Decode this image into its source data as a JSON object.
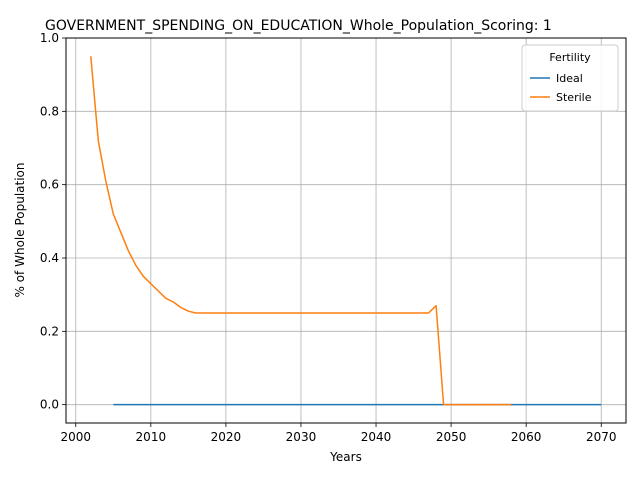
{
  "chart_data": {
    "type": "line",
    "title": "GOVERNMENT_SPENDING_ON_EDUCATION_Whole_Population_Scoring: 1",
    "xlabel": "Years",
    "ylabel": "% of Whole Population",
    "xlim": [
      1998.7,
      2073.3
    ],
    "ylim": [
      -0.05,
      1.0
    ],
    "xticks": [
      2000,
      2010,
      2020,
      2030,
      2040,
      2050,
      2060,
      2070
    ],
    "yticks": [
      0.0,
      0.2,
      0.4,
      0.6,
      0.8,
      1.0
    ],
    "xtick_labels": [
      "2000",
      "2010",
      "2020",
      "2030",
      "2040",
      "2050",
      "2060",
      "2070"
    ],
    "ytick_labels": [
      "0.0",
      "0.2",
      "0.4",
      "0.6",
      "0.8",
      "1.0"
    ],
    "grid": true,
    "legend": {
      "title": "Fertility",
      "placement": "top-right"
    },
    "series": [
      {
        "name": "Ideal",
        "color": "#1f77b4",
        "x": [
          2005,
          2070
        ],
        "y": [
          0.0,
          0.0
        ]
      },
      {
        "name": "Sterile",
        "color": "#ff7f0e",
        "x": [
          2002,
          2003,
          2004,
          2005,
          2006,
          2007,
          2008,
          2009,
          2010,
          2011,
          2012,
          2013,
          2014,
          2015,
          2016,
          2017,
          2020,
          2030,
          2040,
          2047,
          2048,
          2049,
          2050,
          2055,
          2058
        ],
        "y": [
          0.95,
          0.72,
          0.61,
          0.52,
          0.47,
          0.42,
          0.38,
          0.35,
          0.33,
          0.31,
          0.29,
          0.28,
          0.265,
          0.255,
          0.25,
          0.25,
          0.25,
          0.25,
          0.25,
          0.25,
          0.27,
          0.0,
          0.0,
          0.0,
          0.0
        ]
      }
    ]
  }
}
